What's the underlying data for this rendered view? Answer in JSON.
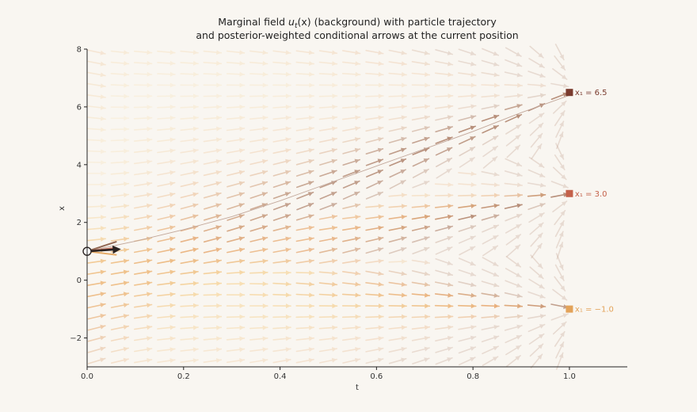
{
  "chart_data": {
    "type": "vector-field",
    "title": "Marginal field u_t(x) (background) with particle trajectory",
    "subtitle": "and posterior-weighted conditional arrows at the current position",
    "title_parts": [
      "Marginal field ",
      "u",
      "t",
      "(x) (background) with particle trajectory"
    ],
    "xlabel": "t",
    "ylabel": "x",
    "xlim": [
      0,
      1.12
    ],
    "ylim": [
      -3,
      8
    ],
    "xticks": [
      0.0,
      0.2,
      0.4,
      0.6,
      0.8,
      1.0
    ],
    "xtick_labels": [
      "0.0",
      "0.2",
      "0.4",
      "0.6",
      "0.8",
      "1.0"
    ],
    "yticks": [
      -2,
      0,
      2,
      4,
      6,
      8
    ],
    "ytick_labels": [
      "−2",
      "0",
      "2",
      "4",
      "6",
      "8"
    ],
    "grid": false,
    "targets": [
      {
        "value": 6.5,
        "label": "x₁ = 6.5",
        "color": "#7a3b2e"
      },
      {
        "value": 3.0,
        "label": "x₁ = 3.0",
        "color": "#c4614a"
      },
      {
        "value": -1.0,
        "label": "x₁ = −1.0",
        "color": "#e3a35a"
      }
    ],
    "trajectory": {
      "t": [
        0.0,
        0.1,
        0.2,
        0.3,
        0.4,
        0.5,
        0.6,
        0.7,
        0.8,
        0.9,
        1.0
      ],
      "x": [
        1.0,
        1.35,
        1.75,
        2.2,
        2.75,
        3.35,
        3.95,
        4.55,
        5.15,
        5.8,
        6.4
      ]
    },
    "current_position": {
      "t": 0.0,
      "x": 1.0
    },
    "conditional_arrows": [
      {
        "target": 6.5,
        "velocity": 5.5,
        "color": "#8a5a44"
      },
      {
        "target": 3.0,
        "velocity": 2.0,
        "color": "#c4614a"
      },
      {
        "target": -1.0,
        "velocity": -2.0,
        "color": "#e3a35a"
      }
    ],
    "posterior_mean_velocity": 1.1,
    "field": {
      "targets": [
        6.5,
        3.0,
        -1.0
      ],
      "sigma_min": 0.02,
      "t_samples": 21,
      "x_samples": 29,
      "t_range": [
        0.02,
        0.98
      ],
      "x_range": [
        -2.8,
        7.9
      ]
    }
  }
}
